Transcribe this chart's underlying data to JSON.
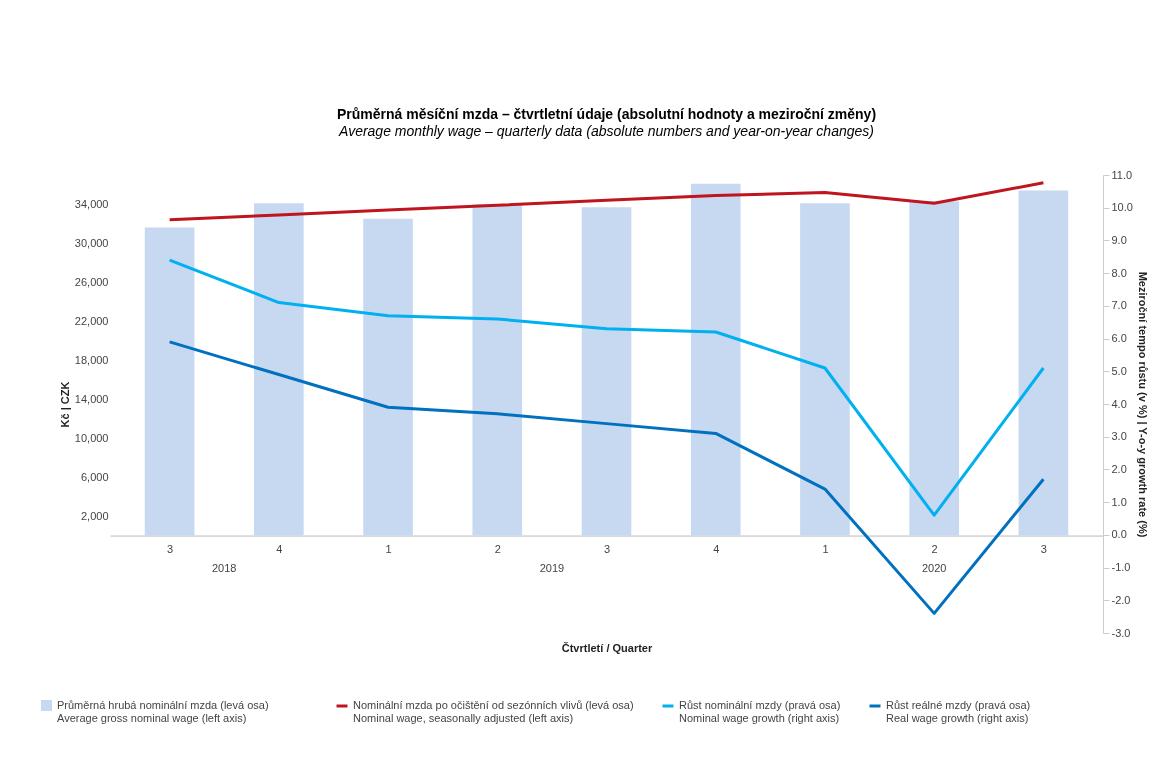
{
  "chart_data": {
    "type": "bar",
    "title": "Průměrná měsíční mzda – čtvrtletní údaje (absolutní hodnoty a meziroční změny)",
    "subtitle": "Average monthly wage – quarterly data (absolute numbers and year-on-year changes)",
    "xlabel": "Čtvrtletí / Quarter",
    "ylabel": "Kč | CZK",
    "y2label": "Meziroční tempo růstu (v %) | Y-o-y growth rate (%)",
    "categories": [
      "3",
      "4",
      "1",
      "2",
      "3",
      "4",
      "1",
      "2",
      "3"
    ],
    "annotations": [
      "2018",
      "2019",
      "2020"
    ],
    "series": [
      {
        "name": "Průměrná hrubá nominální mzda (levá osa)\nAverage gross nominal wage (left axis)",
        "color": "#c6d9f1",
        "values": [
          31600,
          34100,
          32500,
          34000,
          33700,
          36100,
          34100,
          34300,
          35400
        ]
      },
      {
        "name": "Nominální mzda po očištění od sezónních vlivů (levá osa)\nNominal wage, seasonally adjusted (left axis)",
        "type": "line",
        "color": "#c0141e",
        "values": [
          32400,
          32900,
          33400,
          33900,
          34400,
          34900,
          35200,
          34100,
          36200
        ]
      },
      {
        "name": "Růst nominální mzdy (pravá osa)\nNominal wage growth (right axis)",
        "type": "line",
        "axis": "y2",
        "color": "#00b0f0",
        "values": [
          8.4,
          7.1,
          6.7,
          6.6,
          6.3,
          6.2,
          5.1,
          0.6,
          5.1
        ]
      },
      {
        "name": "Růst reálné mzdy (pravá osa)\nReal wage growth (right axis)",
        "type": "line",
        "axis": "y2",
        "color": "#0070c0",
        "values": [
          5.9,
          4.9,
          3.9,
          3.7,
          3.4,
          3.1,
          1.4,
          -2.4,
          1.7
        ]
      }
    ],
    "ylim": [
      -10000,
      37000
    ],
    "yticks": [
      {
        "value": 2000,
        "label": "2,000"
      },
      {
        "value": 6000,
        "label": "6,000"
      },
      {
        "value": 10000,
        "label": "10,000"
      },
      {
        "value": 14000,
        "label": "14,000"
      },
      {
        "value": 18000,
        "label": "18,000"
      },
      {
        "value": 22000,
        "label": "22,000"
      },
      {
        "value": 26000,
        "label": "26,000"
      },
      {
        "value": 30000,
        "label": "30,000"
      },
      {
        "value": 34000,
        "label": "34,000"
      }
    ],
    "y2lim": [
      -3,
      11
    ],
    "y2ticks": [
      {
        "value": -3,
        "label": "-3.0"
      },
      {
        "value": -2,
        "label": "-2.0"
      },
      {
        "value": -1,
        "label": "-1.0"
      },
      {
        "value": 0,
        "label": "0.0"
      },
      {
        "value": 1,
        "label": "1.0"
      },
      {
        "value": 2,
        "label": "2.0"
      },
      {
        "value": 3,
        "label": "3.0"
      },
      {
        "value": 4,
        "label": "4.0"
      },
      {
        "value": 5,
        "label": "5.0"
      },
      {
        "value": 6,
        "label": "6.0"
      },
      {
        "value": 7,
        "label": "7.0"
      },
      {
        "value": 8,
        "label": "8.0"
      },
      {
        "value": 9,
        "label": "9.0"
      },
      {
        "value": 10,
        "label": "10.0"
      },
      {
        "value": 11,
        "label": "11.0"
      }
    ],
    "legend": "bottom",
    "grid": false,
    "marker": "none",
    "line_style": "solid"
  }
}
